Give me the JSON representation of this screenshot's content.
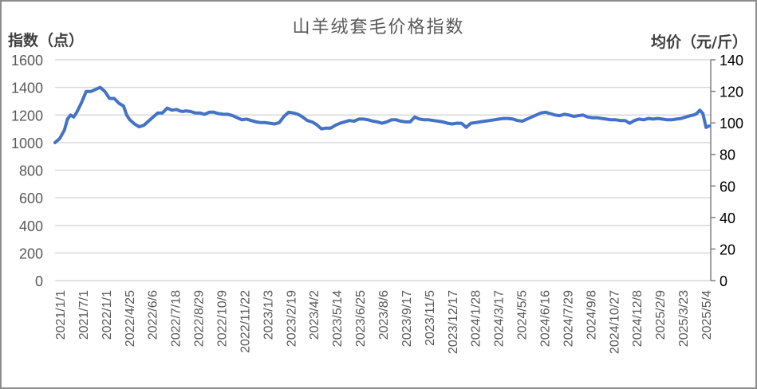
{
  "chart_data": {
    "type": "line",
    "title": "山羊绒套毛价格指数",
    "ylabel": "指数（点）",
    "y2label": "均价（元/斤）",
    "xlabel": "",
    "ylim": [
      0,
      1600
    ],
    "y2lim": [
      0,
      140
    ],
    "yticks": [
      0,
      200,
      400,
      600,
      800,
      1000,
      1200,
      1400,
      1600
    ],
    "y2ticks": [
      0,
      20,
      40,
      60,
      80,
      100,
      120,
      140
    ],
    "grid": true,
    "legend": "none",
    "line_color": "#4472C4",
    "x_tick_labels": [
      "2021/1/1",
      "2021/7/1",
      "2022/1/1",
      "2022/4/25",
      "2022/6/6",
      "2022/7/18",
      "2022/8/29",
      "2022/10/9",
      "2022/11/22",
      "2023/1/3",
      "2023/2/19",
      "2023/4/2",
      "2023/5/14",
      "2023/6/25",
      "2023/8/6",
      "2023/9/17",
      "2023/11/5",
      "2023/12/17",
      "2024/1/28",
      "2024/3/17",
      "2024/5/5",
      "2024/6/16",
      "2024/7/29",
      "2024/9/8",
      "2024/10/27",
      "2024/12/8",
      "2025/2/9",
      "2025/3/23",
      "2025/5/4"
    ],
    "series": [
      {
        "name": "山羊绒套毛价格指数",
        "axis": "left",
        "x_index": [
          0,
          3,
          6,
          8,
          10,
          12,
          14,
          17,
          20,
          23,
          26,
          29,
          32,
          35,
          38,
          41,
          44,
          46,
          48,
          51,
          54,
          57,
          60,
          63,
          66,
          69,
          72,
          75,
          78,
          80,
          82,
          84,
          87,
          90,
          93,
          96,
          99,
          102,
          105,
          108,
          111,
          114,
          117,
          120,
          123,
          126,
          129,
          132,
          135,
          138,
          141,
          144,
          147,
          150,
          153,
          156,
          159,
          162,
          165,
          168,
          171,
          174,
          177,
          180,
          183,
          186,
          189,
          192,
          195,
          198,
          201,
          204,
          207,
          210,
          213,
          216,
          219,
          222,
          225,
          228,
          231,
          234,
          237,
          240,
          243,
          246,
          249,
          252,
          255,
          258,
          261,
          264,
          267,
          270,
          273,
          276,
          279,
          282,
          285,
          288,
          291,
          294,
          297,
          300,
          303,
          306,
          309,
          312,
          315,
          318,
          321,
          324,
          327,
          330,
          333,
          336,
          339,
          342,
          345,
          348,
          351,
          354,
          357,
          360,
          363,
          366,
          369,
          372,
          375,
          378,
          381,
          384,
          387,
          390,
          393,
          396,
          399,
          402,
          405,
          408,
          410,
          412,
          414,
          416,
          418,
          420
        ],
        "values": [
          1000,
          1030,
          1090,
          1170,
          1200,
          1185,
          1220,
          1290,
          1370,
          1370,
          1385,
          1400,
          1370,
          1320,
          1320,
          1285,
          1265,
          1200,
          1165,
          1135,
          1115,
          1125,
          1155,
          1185,
          1215,
          1215,
          1250,
          1235,
          1240,
          1230,
          1225,
          1230,
          1225,
          1215,
          1215,
          1205,
          1220,
          1220,
          1210,
          1205,
          1205,
          1195,
          1180,
          1165,
          1170,
          1160,
          1150,
          1145,
          1145,
          1140,
          1135,
          1145,
          1190,
          1220,
          1215,
          1205,
          1185,
          1160,
          1150,
          1130,
          1100,
          1105,
          1105,
          1125,
          1140,
          1150,
          1160,
          1155,
          1170,
          1170,
          1165,
          1155,
          1150,
          1140,
          1150,
          1165,
          1165,
          1155,
          1150,
          1150,
          1185,
          1170,
          1165,
          1165,
          1160,
          1155,
          1150,
          1140,
          1135,
          1140,
          1140,
          1110,
          1140,
          1145,
          1150,
          1155,
          1160,
          1165,
          1170,
          1175,
          1175,
          1170,
          1160,
          1155,
          1170,
          1185,
          1200,
          1215,
          1220,
          1210,
          1200,
          1195,
          1205,
          1200,
          1190,
          1195,
          1200,
          1185,
          1180,
          1180,
          1175,
          1170,
          1165,
          1165,
          1160,
          1160,
          1140,
          1160,
          1170,
          1165,
          1175,
          1170,
          1175,
          1170,
          1165,
          1165,
          1170,
          1175,
          1185,
          1195,
          1200,
          1210,
          1235,
          1210,
          1110,
          1120,
          1120
        ]
      }
    ]
  }
}
